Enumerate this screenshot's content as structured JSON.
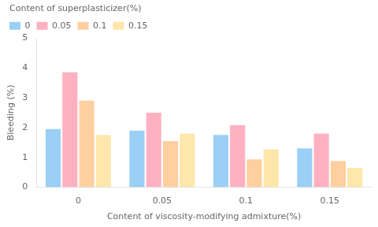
{
  "chart_data": {
    "type": "bar",
    "categories": [
      "0",
      "0.05",
      "0.1",
      "0.15"
    ],
    "series": [
      {
        "name": "0",
        "values": [
          1.95,
          1.9,
          1.75,
          1.3
        ]
      },
      {
        "name": "0.05",
        "values": [
          3.85,
          2.5,
          2.08,
          1.8
        ]
      },
      {
        "name": "0.1",
        "values": [
          2.9,
          1.55,
          0.93,
          0.88
        ]
      },
      {
        "name": "0.15",
        "values": [
          1.75,
          1.8,
          1.27,
          0.65
        ]
      }
    ],
    "xlabel": "Content of viscosity-modifying admixture(%)",
    "ylabel": "Bleeding (%)",
    "legend_title": "Content of superplasticizer(%)",
    "legend": "upper left",
    "ylim": [
      0,
      5
    ],
    "yticks": [
      0,
      1,
      2,
      3,
      4,
      5
    ],
    "grid": false
  }
}
